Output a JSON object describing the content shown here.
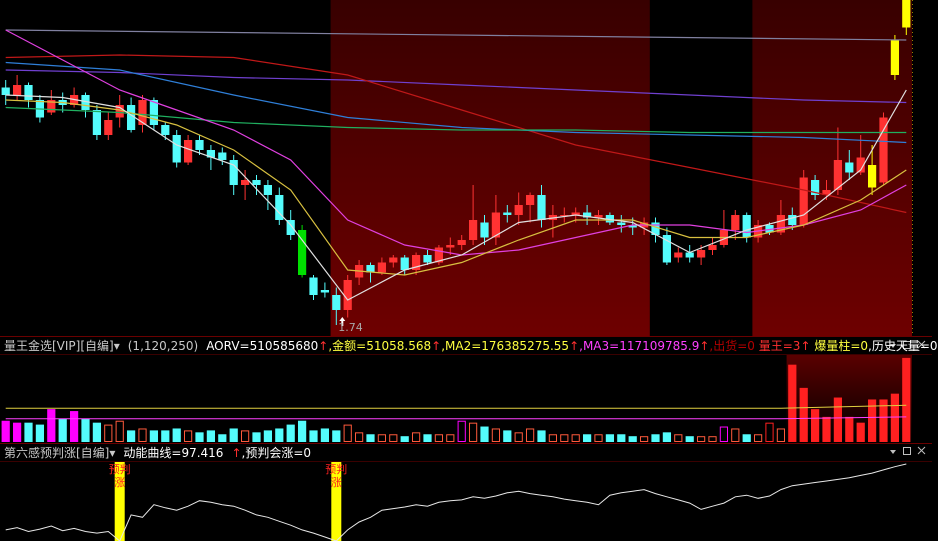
{
  "chart_data": [
    {
      "type": "candlestick",
      "open": [
        2.69,
        2.66,
        2.7,
        2.64,
        2.59,
        2.64,
        2.62,
        2.66,
        2.6,
        2.5,
        2.57,
        2.62,
        2.54,
        2.64,
        2.54,
        2.5,
        2.39,
        2.48,
        2.44,
        2.43,
        2.4,
        2.3,
        2.32,
        2.3,
        2.26,
        2.16,
        2.12,
        1.93,
        1.88,
        1.86,
        1.8,
        1.93,
        1.98,
        1.95,
        1.99,
        2.01,
        1.96,
        2.02,
        1.99,
        2.05,
        2.06,
        2.08,
        2.15,
        2.09,
        2.19,
        2.18,
        2.22,
        2.26,
        2.16,
        2.18,
        2.18,
        2.19,
        2.17,
        2.18,
        2.15,
        2.14,
        2.13,
        2.15,
        2.1,
        2.01,
        2.03,
        2.01,
        2.04,
        2.06,
        2.12,
        2.18,
        2.09,
        2.14,
        2.11,
        2.18,
        2.14,
        2.32,
        2.26,
        2.28,
        2.39,
        2.35,
        2.38,
        2.31,
        2.74,
        2.93
      ],
      "high": [
        2.72,
        2.74,
        2.71,
        2.66,
        2.68,
        2.67,
        2.69,
        2.67,
        2.62,
        2.59,
        2.66,
        2.65,
        2.66,
        2.65,
        2.55,
        2.52,
        2.5,
        2.5,
        2.46,
        2.45,
        2.42,
        2.36,
        2.34,
        2.32,
        2.29,
        2.2,
        2.14,
        1.94,
        1.91,
        1.89,
        1.94,
        2.0,
        1.99,
        2.01,
        2.02,
        2.02,
        2.03,
        2.04,
        2.06,
        2.09,
        2.1,
        2.3,
        2.18,
        2.26,
        2.22,
        2.27,
        2.27,
        2.3,
        2.22,
        2.21,
        2.21,
        2.22,
        2.2,
        2.19,
        2.18,
        2.17,
        2.17,
        2.17,
        2.13,
        2.05,
        2.06,
        2.06,
        2.09,
        2.2,
        2.2,
        2.19,
        2.16,
        2.15,
        2.24,
        2.21,
        2.36,
        2.34,
        2.32,
        2.53,
        2.44,
        2.5,
        2.46,
        2.59,
        2.9,
        3.05
      ],
      "low": [
        2.62,
        2.64,
        2.61,
        2.55,
        2.58,
        2.59,
        2.61,
        2.57,
        2.48,
        2.48,
        2.53,
        2.51,
        2.51,
        2.52,
        2.48,
        2.37,
        2.38,
        2.42,
        2.36,
        2.38,
        2.26,
        2.24,
        2.26,
        2.2,
        2.14,
        2.08,
        1.93,
        1.84,
        1.85,
        1.74,
        1.77,
        1.9,
        1.91,
        1.94,
        1.97,
        1.94,
        1.94,
        1.98,
        1.98,
        2.02,
        2.04,
        2.06,
        2.06,
        2.06,
        2.15,
        2.14,
        2.15,
        2.13,
        2.09,
        2.15,
        2.15,
        2.14,
        2.14,
        2.14,
        2.11,
        2.1,
        2.1,
        2.07,
        1.98,
        1.99,
        1.99,
        1.98,
        2.02,
        2.05,
        2.08,
        2.07,
        2.07,
        2.1,
        2.1,
        2.12,
        2.13,
        2.24,
        2.24,
        2.26,
        2.32,
        2.34,
        2.26,
        2.3,
        2.72,
        2.9
      ],
      "close": [
        2.66,
        2.7,
        2.64,
        2.57,
        2.64,
        2.62,
        2.66,
        2.6,
        2.5,
        2.56,
        2.62,
        2.52,
        2.64,
        2.54,
        2.5,
        2.39,
        2.48,
        2.44,
        2.41,
        2.4,
        2.3,
        2.32,
        2.3,
        2.26,
        2.16,
        2.1,
        1.94,
        1.86,
        1.87,
        1.8,
        1.92,
        1.98,
        1.95,
        1.99,
        2.01,
        1.96,
        2.02,
        1.99,
        2.05,
        2.06,
        2.08,
        2.16,
        2.09,
        2.19,
        2.18,
        2.22,
        2.26,
        2.16,
        2.18,
        2.18,
        2.19,
        2.17,
        2.18,
        2.15,
        2.14,
        2.13,
        2.15,
        2.1,
        1.99,
        2.03,
        2.01,
        2.04,
        2.06,
        2.12,
        2.18,
        2.09,
        2.14,
        2.11,
        2.18,
        2.14,
        2.33,
        2.26,
        2.28,
        2.4,
        2.35,
        2.41,
        2.29,
        2.57,
        2.88,
        3.05
      ],
      "ylim": [
        1.7,
        3.04
      ],
      "up_color": "#ff3232",
      "down_color": "#54fcfc",
      "special_colors": [
        {
          "index": 26,
          "color": "#00e000"
        },
        {
          "index": 76,
          "color": "#ffff00"
        },
        {
          "index": 78,
          "color": "#ffff00"
        },
        {
          "index": 79,
          "color": "#ffff00"
        }
      ],
      "highlight_ranges": [
        [
          29,
          56
        ],
        [
          66,
          79
        ]
      ],
      "lines": [
        {
          "color": "#8080a0",
          "x": [
            0,
            79
          ],
          "values": [
            2.92,
            2.88
          ]
        },
        {
          "color": "#7040d0",
          "x": [
            0,
            10,
            20,
            30,
            40,
            50,
            60,
            70,
            79
          ],
          "values": [
            2.76,
            2.75,
            2.73,
            2.72,
            2.7,
            2.68,
            2.66,
            2.64,
            2.63
          ]
        },
        {
          "color": "#c01818",
          "x": [
            0,
            10,
            20,
            30,
            40,
            50,
            60,
            70,
            79
          ],
          "values": [
            2.81,
            2.82,
            2.81,
            2.74,
            2.6,
            2.46,
            2.37,
            2.28,
            2.19
          ]
        },
        {
          "color": "#2f7fd8",
          "x": [
            0,
            10,
            20,
            30,
            40,
            50,
            60,
            70,
            79
          ],
          "values": [
            2.79,
            2.76,
            2.66,
            2.57,
            2.53,
            2.51,
            2.5,
            2.49,
            2.47
          ]
        },
        {
          "color": "#20b060",
          "x": [
            0,
            10,
            20,
            30,
            40,
            50,
            60,
            70,
            79
          ],
          "values": [
            2.61,
            2.59,
            2.55,
            2.53,
            2.52,
            2.52,
            2.51,
            2.51,
            2.51
          ]
        },
        {
          "color": "#e040e0",
          "x": [
            0,
            5,
            10,
            15,
            20,
            25,
            30,
            35,
            40,
            45,
            50,
            55,
            60,
            65,
            70,
            75,
            79
          ],
          "values": [
            2.92,
            2.8,
            2.68,
            2.6,
            2.52,
            2.4,
            2.16,
            2.06,
            2.02,
            2.04,
            2.09,
            2.14,
            2.14,
            2.11,
            2.14,
            2.2,
            2.3
          ]
        },
        {
          "color": "#d8c040",
          "x": [
            0,
            5,
            10,
            15,
            20,
            25,
            30,
            35,
            40,
            45,
            50,
            55,
            60,
            65,
            70,
            75,
            79
          ],
          "values": [
            2.64,
            2.63,
            2.6,
            2.54,
            2.44,
            2.28,
            1.96,
            1.94,
            1.99,
            2.08,
            2.16,
            2.16,
            2.09,
            2.09,
            2.14,
            2.24,
            2.36
          ]
        },
        {
          "color": "#e0e0e0",
          "x": [
            0,
            5,
            10,
            15,
            20,
            25,
            30,
            35,
            40,
            45,
            50,
            55,
            60,
            65,
            70,
            75,
            79
          ],
          "values": [
            2.66,
            2.65,
            2.61,
            2.46,
            2.38,
            2.14,
            1.84,
            1.96,
            2.02,
            2.15,
            2.18,
            2.15,
            2.03,
            2.12,
            2.18,
            2.36,
            2.68
          ]
        }
      ],
      "annotations": [
        {
          "x": 29,
          "text": "1.74"
        }
      ]
    },
    {
      "type": "bar",
      "header": [
        {
          "text": "量王金选[VIP][自编]▾",
          "color": "#c8c8c8"
        },
        {
          "text": "(1,120,250)",
          "color": "#c8c8c8"
        },
        {
          "text": "AORV=510585680",
          "color": "#ffffff"
        },
        {
          "text": "↑",
          "color": "#ff3030"
        },
        {
          "text": ",金额=51058.568",
          "color": "#ffff40"
        },
        {
          "text": "↑",
          "color": "#ff3030"
        },
        {
          "text": ",MA2=176385275.55",
          "color": "#ffff40"
        },
        {
          "text": "↑",
          "color": "#ff3030"
        },
        {
          "text": ",MA3=117109785.9",
          "color": "#ff40ff"
        },
        {
          "text": "↑",
          "color": "#ff3030"
        },
        {
          "text": ",出货=0",
          "color": "#b00000"
        },
        {
          "text": " 量王=3",
          "color": "#ff3030"
        },
        {
          "text": "↑",
          "color": "#ff3030"
        },
        {
          "text": " 爆量柱=0",
          "color": "#ffff40"
        },
        {
          "text": ",历史天量=0",
          "color": "#ffffff"
        }
      ],
      "values": [
        22,
        20,
        20,
        18,
        34,
        24,
        32,
        24,
        20,
        18,
        22,
        12,
        14,
        12,
        12,
        14,
        12,
        10,
        12,
        8,
        14,
        12,
        10,
        12,
        14,
        18,
        22,
        12,
        14,
        12,
        18,
        10,
        8,
        8,
        8,
        6,
        10,
        8,
        8,
        8,
        22,
        20,
        16,
        14,
        12,
        10,
        14,
        12,
        8,
        8,
        8,
        8,
        8,
        8,
        8,
        6,
        6,
        8,
        10,
        8,
        6,
        6,
        6,
        16,
        14,
        8,
        8,
        20,
        14,
        80,
        56,
        34,
        26,
        46,
        26,
        20,
        44,
        44,
        50,
        87
      ],
      "ylim": [
        0,
        90
      ],
      "up_color": "#ff5a3c",
      "down_color": "#54fcfc",
      "overrides": [
        {
          "index": 0,
          "color": "#ff00ff",
          "hollow": false
        },
        {
          "index": 1,
          "color": "#ff00ff",
          "hollow": false
        },
        {
          "index": 4,
          "color": "#ff00ff",
          "hollow": false
        },
        {
          "index": 6,
          "color": "#ff00ff",
          "hollow": false
        },
        {
          "index": 40,
          "color": "#ff00ff",
          "hollow": true
        },
        {
          "index": 63,
          "color": "#ff00ff",
          "hollow": true
        },
        {
          "index": 67,
          "color": "#ff2020",
          "hollow": true
        },
        {
          "index": 69,
          "color": "#ff2020",
          "hollow": false
        },
        {
          "index": 70,
          "color": "#ff2020",
          "hollow": false
        },
        {
          "index": 71,
          "color": "#ff2020",
          "hollow": false
        },
        {
          "index": 72,
          "color": "#ff2020",
          "hollow": false
        },
        {
          "index": 73,
          "color": "#ff2020",
          "hollow": false
        },
        {
          "index": 74,
          "color": "#ff2020",
          "hollow": false
        },
        {
          "index": 75,
          "color": "#ff2020",
          "hollow": false
        },
        {
          "index": 76,
          "color": "#ff2020",
          "hollow": false
        },
        {
          "index": 77,
          "color": "#ff2020",
          "hollow": false
        },
        {
          "index": 78,
          "color": "#ff2020",
          "hollow": false
        },
        {
          "index": 79,
          "color": "#ff2020",
          "hollow": false
        }
      ],
      "highlight_ranges": [
        [
          69,
          79
        ]
      ],
      "lines": [
        {
          "color": "#ff40ff",
          "x": [
            0,
            68,
            79
          ],
          "values": [
            24,
            24,
            26
          ]
        },
        {
          "color": "#e0d040",
          "x": [
            0,
            68,
            79
          ],
          "values": [
            35,
            35,
            38
          ]
        }
      ]
    },
    {
      "type": "line",
      "header": [
        {
          "text": "第六感预判涨[自编]▾",
          "color": "#c8c8c8"
        },
        {
          "text": "动能曲线=97.416",
          "color": "#ffffff"
        },
        {
          "text": "↑",
          "color": "#ff3030"
        },
        {
          "text": ",预判会涨=0",
          "color": "#ffffff"
        }
      ],
      "values": [
        14,
        17,
        12,
        15,
        19,
        13,
        16,
        12,
        10,
        12,
        0,
        33,
        30,
        46,
        42,
        39,
        44,
        51,
        49,
        46,
        44,
        39,
        33,
        30,
        25,
        20,
        14,
        10,
        5,
        0,
        14,
        24,
        30,
        39,
        41,
        43,
        46,
        44,
        49,
        51,
        52,
        56,
        54,
        57,
        61,
        63,
        60,
        58,
        56,
        53,
        51,
        49,
        46,
        58,
        61,
        63,
        65,
        60,
        56,
        52,
        48,
        40,
        44,
        48,
        56,
        58,
        54,
        57,
        65,
        70,
        72,
        74,
        76,
        78,
        80,
        83,
        86,
        90,
        94,
        97.416
      ],
      "ylim": [
        0,
        100
      ],
      "color": "#e8e8e8",
      "signal_color": "#ffff00",
      "signals": [
        {
          "x": 10,
          "text": "预判涨"
        },
        {
          "x": 29,
          "text": "预判涨"
        }
      ]
    }
  ]
}
